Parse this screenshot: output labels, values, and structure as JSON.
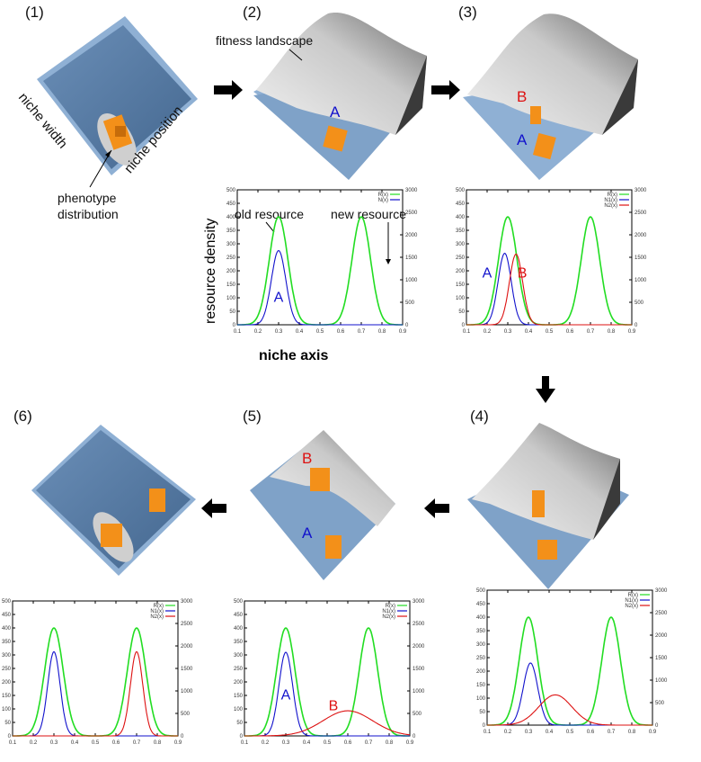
{
  "panels": [
    {
      "id": "1",
      "label": "(1)"
    },
    {
      "id": "2",
      "label": "(2)"
    },
    {
      "id": "3",
      "label": "(3)"
    },
    {
      "id": "4",
      "label": "(4)"
    },
    {
      "id": "5",
      "label": "(5)"
    },
    {
      "id": "6",
      "label": "(6)"
    }
  ],
  "annotations": {
    "niche_width": "niche width",
    "niche_position": "niche position",
    "phenotype_line1": "phenotype",
    "phenotype_line2": "distribution",
    "fitness_landscape": "fitness landscape",
    "old_resource": "old resource",
    "new_resource": "new resource",
    "resource_density": "resource density",
    "niche_axis": "niche axis",
    "A": "A",
    "B": "B"
  },
  "colors": {
    "resource": "#22dd22",
    "species_A": "#1111cc",
    "species_B": "#dd1111",
    "plate": "#6f95bf",
    "landscape": "#d8d8d8",
    "phenotype": "#f39019"
  },
  "chart_data": [
    {
      "panel": "2",
      "type": "line",
      "xlim": [
        0.1,
        0.9
      ],
      "ylim": [
        0,
        500
      ],
      "y2lim": [
        0,
        3000
      ],
      "xticks": [
        "0.1",
        "0.2",
        "0.3",
        "0.4",
        "0.5",
        "0.6",
        "0.7",
        "0.8",
        "0.9"
      ],
      "yticks": [
        "0",
        "50",
        "100",
        "150",
        "200",
        "250",
        "300",
        "350",
        "400",
        "450",
        "500"
      ],
      "y2ticks": [
        "0",
        "500",
        "1000",
        "1500",
        "2000",
        "2500",
        "3000"
      ],
      "xlabel": "niche axis",
      "ylabel": "resource density",
      "legend": [
        "R(x)",
        "N(x)"
      ],
      "series": [
        {
          "name": "resource",
          "color": "#22dd22",
          "gaussians": [
            {
              "mu": 0.3,
              "sigma": 0.045,
              "amp": 400
            },
            {
              "mu": 0.7,
              "sigma": 0.045,
              "amp": 400
            }
          ]
        },
        {
          "name": "A",
          "color": "#1111cc",
          "gaussians": [
            {
              "mu": 0.3,
              "sigma": 0.035,
              "amp": 275
            }
          ]
        }
      ],
      "labels": [
        {
          "text": "A",
          "color": "#1111cc",
          "x": 0.3,
          "y": 85
        }
      ]
    },
    {
      "panel": "3",
      "type": "line",
      "xlim": [
        0.1,
        0.9
      ],
      "ylim": [
        0,
        500
      ],
      "y2lim": [
        0,
        3000
      ],
      "xticks": [
        "0.1",
        "0.2",
        "0.3",
        "0.4",
        "0.5",
        "0.6",
        "0.7",
        "0.8",
        "0.9"
      ],
      "yticks": [
        "0",
        "50",
        "100",
        "150",
        "200",
        "250",
        "300",
        "350",
        "400",
        "450",
        "500"
      ],
      "y2ticks": [
        "0",
        "500",
        "1000",
        "1500",
        "2000",
        "2500",
        "3000"
      ],
      "legend": [
        "R(x)",
        "N1(x)",
        "N2(x)"
      ],
      "series": [
        {
          "name": "resource",
          "color": "#22dd22",
          "gaussians": [
            {
              "mu": 0.3,
              "sigma": 0.045,
              "amp": 400
            },
            {
              "mu": 0.7,
              "sigma": 0.045,
              "amp": 400
            }
          ]
        },
        {
          "name": "A",
          "color": "#1111cc",
          "gaussians": [
            {
              "mu": 0.285,
              "sigma": 0.032,
              "amp": 265
            }
          ]
        },
        {
          "name": "B",
          "color": "#dd1111",
          "gaussians": [
            {
              "mu": 0.34,
              "sigma": 0.032,
              "amp": 262
            }
          ]
        }
      ],
      "labels": [
        {
          "text": "A",
          "color": "#1111cc",
          "x": 0.2,
          "y": 175
        },
        {
          "text": "B",
          "color": "#dd1111",
          "x": 0.37,
          "y": 175
        }
      ]
    },
    {
      "panel": "4",
      "type": "line",
      "xlim": [
        0.1,
        0.9
      ],
      "ylim": [
        0,
        500
      ],
      "y2lim": [
        0,
        3000
      ],
      "xticks": [
        "0.1",
        "0.2",
        "0.3",
        "0.4",
        "0.5",
        "0.6",
        "0.7",
        "0.8",
        "0.9"
      ],
      "yticks": [
        "0",
        "50",
        "100",
        "150",
        "200",
        "250",
        "300",
        "350",
        "400",
        "450",
        "500"
      ],
      "y2ticks": [
        "0",
        "500",
        "1000",
        "1500",
        "2000",
        "2500",
        "3000"
      ],
      "legend": [
        "R(x)",
        "N1(x)",
        "N2(x)"
      ],
      "series": [
        {
          "name": "resource",
          "color": "#22dd22",
          "gaussians": [
            {
              "mu": 0.3,
              "sigma": 0.045,
              "amp": 400
            },
            {
              "mu": 0.7,
              "sigma": 0.045,
              "amp": 400
            }
          ]
        },
        {
          "name": "A",
          "color": "#1111cc",
          "gaussians": [
            {
              "mu": 0.31,
              "sigma": 0.035,
              "amp": 230
            }
          ]
        },
        {
          "name": "B",
          "color": "#dd1111",
          "gaussians": [
            {
              "mu": 0.43,
              "sigma": 0.08,
              "amp": 112
            }
          ]
        }
      ],
      "labels": []
    },
    {
      "panel": "5",
      "type": "line",
      "xlim": [
        0.1,
        0.9
      ],
      "ylim": [
        0,
        500
      ],
      "y2lim": [
        0,
        3000
      ],
      "xticks": [
        "0.1",
        "0.2",
        "0.3",
        "0.4",
        "0.5",
        "0.6",
        "0.7",
        "0.8",
        "0.9"
      ],
      "yticks": [
        "0",
        "50",
        "100",
        "150",
        "200",
        "250",
        "300",
        "350",
        "400",
        "450",
        "500"
      ],
      "y2ticks": [
        "0",
        "500",
        "1000",
        "1500",
        "2000",
        "2500",
        "3000"
      ],
      "legend": [
        "R(x)",
        "N1(x)",
        "N2(x)"
      ],
      "series": [
        {
          "name": "resource",
          "color": "#22dd22",
          "gaussians": [
            {
              "mu": 0.3,
              "sigma": 0.045,
              "amp": 400
            },
            {
              "mu": 0.7,
              "sigma": 0.045,
              "amp": 400
            }
          ]
        },
        {
          "name": "A",
          "color": "#1111cc",
          "gaussians": [
            {
              "mu": 0.3,
              "sigma": 0.033,
              "amp": 310
            }
          ]
        },
        {
          "name": "B",
          "color": "#dd1111",
          "gaussians": [
            {
              "mu": 0.6,
              "sigma": 0.12,
              "amp": 93
            }
          ]
        }
      ],
      "labels": [
        {
          "text": "A",
          "color": "#1111cc",
          "x": 0.3,
          "y": 135
        },
        {
          "text": "B",
          "color": "#dd1111",
          "x": 0.53,
          "y": 95
        }
      ]
    },
    {
      "panel": "6",
      "type": "line",
      "xlim": [
        0.1,
        0.9
      ],
      "ylim": [
        0,
        500
      ],
      "y2lim": [
        0,
        3000
      ],
      "xticks": [
        "0.1",
        "0.2",
        "0.3",
        "0.4",
        "0.5",
        "0.6",
        "0.7",
        "0.8",
        "0.9"
      ],
      "yticks": [
        "0",
        "50",
        "100",
        "150",
        "200",
        "250",
        "300",
        "350",
        "400",
        "450",
        "500"
      ],
      "y2ticks": [
        "0",
        "500",
        "1000",
        "1500",
        "2000",
        "2500",
        "3000"
      ],
      "legend": [
        "R(x)",
        "N1(x)",
        "N2(x)"
      ],
      "series": [
        {
          "name": "resource",
          "color": "#22dd22",
          "gaussians": [
            {
              "mu": 0.3,
              "sigma": 0.045,
              "amp": 400
            },
            {
              "mu": 0.7,
              "sigma": 0.045,
              "amp": 400
            }
          ]
        },
        {
          "name": "A",
          "color": "#1111cc",
          "gaussians": [
            {
              "mu": 0.3,
              "sigma": 0.03,
              "amp": 312
            }
          ]
        },
        {
          "name": "B",
          "color": "#dd1111",
          "gaussians": [
            {
              "mu": 0.7,
              "sigma": 0.03,
              "amp": 312
            }
          ]
        }
      ],
      "labels": []
    }
  ]
}
